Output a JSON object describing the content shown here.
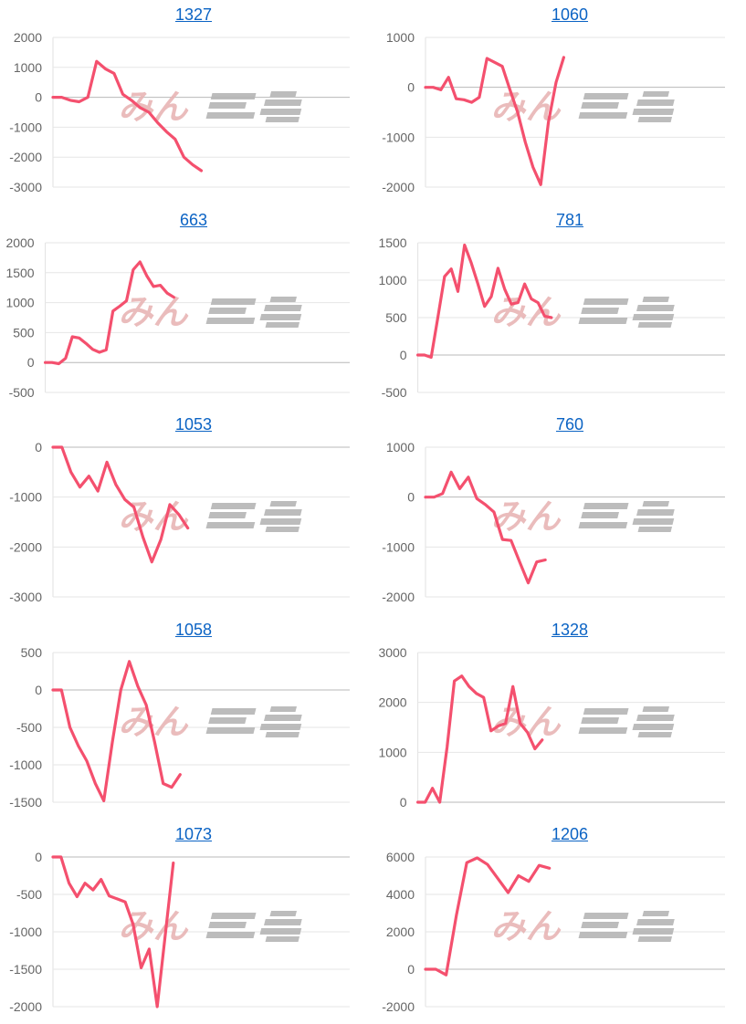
{
  "watermark": "みんレポ",
  "line_color": "#f4506e",
  "chart_data": [
    {
      "type": "line",
      "title": "1327",
      "x_count": 35,
      "yticks": [
        2000,
        1000,
        0,
        -1000,
        -2000,
        -3000
      ],
      "ylim": [
        -3000,
        2000
      ],
      "values": [
        0,
        0,
        -100,
        -150,
        0,
        1200,
        950,
        800,
        100,
        -100,
        -350,
        -500,
        -850,
        -1150,
        -1400,
        -2000,
        -2250,
        -2450
      ]
    },
    {
      "type": "line",
      "title": "1060",
      "x_count": 40,
      "yticks": [
        1000,
        0,
        -1000,
        -2000
      ],
      "ylim": [
        -2000,
        1000
      ],
      "values": [
        0,
        0,
        -50,
        200,
        -230,
        -250,
        -300,
        -200,
        580,
        500,
        420,
        -50,
        -500,
        -1100,
        -1600,
        -1950,
        -700,
        100,
        600
      ]
    },
    {
      "type": "line",
      "title": "663",
      "x_count": 46,
      "yticks": [
        2000,
        1500,
        1000,
        500,
        0,
        -500
      ],
      "ylim": [
        -500,
        2000
      ],
      "values": [
        0,
        0,
        -20,
        70,
        430,
        410,
        320,
        220,
        170,
        210,
        860,
        940,
        1030,
        1550,
        1680,
        1450,
        1270,
        1290,
        1160,
        1090
      ]
    },
    {
      "type": "line",
      "title": "781",
      "x_count": 47,
      "yticks": [
        1500,
        1000,
        500,
        0,
        -500
      ],
      "ylim": [
        -500,
        1500
      ],
      "values": [
        0,
        0,
        -30,
        500,
        1050,
        1150,
        850,
        1470,
        1230,
        950,
        650,
        780,
        1160,
        880,
        680,
        700,
        950,
        750,
        700,
        520,
        500
      ]
    },
    {
      "type": "line",
      "title": "1053",
      "x_count": 34,
      "yticks": [
        0,
        -1000,
        -2000,
        -3000
      ],
      "ylim": [
        -3000,
        0
      ],
      "values": [
        0,
        0,
        -500,
        -800,
        -580,
        -880,
        -300,
        -750,
        -1050,
        -1200,
        -1800,
        -2300,
        -1850,
        -1150,
        -1350,
        -1620
      ]
    },
    {
      "type": "line",
      "title": "760",
      "x_count": 36,
      "yticks": [
        1000,
        0,
        -1000,
        -2000
      ],
      "ylim": [
        -2000,
        1000
      ],
      "values": [
        0,
        0,
        70,
        500,
        170,
        400,
        -30,
        -150,
        -300,
        -850,
        -870,
        -1300,
        -1720,
        -1300,
        -1260
      ]
    },
    {
      "type": "line",
      "title": "1058",
      "x_count": 36,
      "yticks": [
        500,
        0,
        -500,
        -1000,
        -1500
      ],
      "ylim": [
        -1500,
        500
      ],
      "values": [
        0,
        0,
        -500,
        -750,
        -950,
        -1250,
        -1480,
        -700,
        0,
        380,
        50,
        -200,
        -700,
        -1250,
        -1300,
        -1130
      ]
    },
    {
      "type": "line",
      "title": "1328",
      "x_count": 43,
      "yticks": [
        3000,
        2000,
        1000,
        0
      ],
      "ylim": [
        0,
        3000
      ],
      "values": [
        0,
        0,
        280,
        0,
        1100,
        2430,
        2530,
        2320,
        2180,
        2100,
        1430,
        1530,
        1580,
        2320,
        1580,
        1400,
        1070,
        1250
      ]
    },
    {
      "type": "line",
      "title": "1073",
      "x_count": 38,
      "yticks": [
        0,
        -500,
        -1000,
        -1500,
        -2000
      ],
      "ylim": [
        -2000,
        0
      ],
      "values": [
        0,
        0,
        -350,
        -530,
        -350,
        -440,
        -300,
        -520,
        -560,
        -600,
        -900,
        -1480,
        -1230,
        -2000,
        -1040,
        -80
      ]
    },
    {
      "type": "line",
      "title": "1206",
      "x_count": 30,
      "yticks": [
        6000,
        4000,
        2000,
        0,
        -2000
      ],
      "ylim": [
        -2000,
        6000
      ],
      "values": [
        0,
        0,
        -300,
        2900,
        5700,
        5950,
        5600,
        4850,
        4100,
        5000,
        4700,
        5550,
        5400
      ]
    }
  ]
}
